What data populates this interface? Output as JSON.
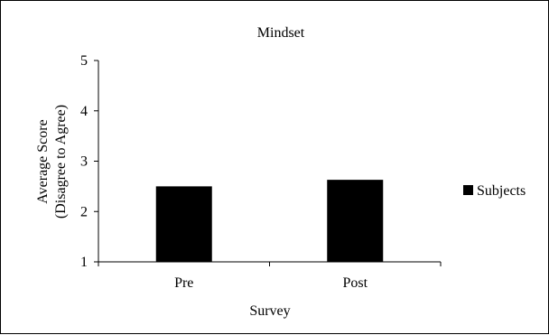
{
  "chart_data": {
    "type": "bar",
    "title": "Mindset",
    "xlabel": "Survey",
    "ylabel_line1": "Average Score",
    "ylabel_line2": "(Disagree to Agree)",
    "categories": [
      "Pre",
      "Post"
    ],
    "series": [
      {
        "name": "Subjects",
        "values": [
          2.5,
          2.63
        ],
        "color": "#000000"
      }
    ],
    "ylim": [
      1,
      5
    ],
    "yticks": [
      1,
      2,
      3,
      4,
      5
    ],
    "grid": false,
    "legend_position": "right"
  }
}
